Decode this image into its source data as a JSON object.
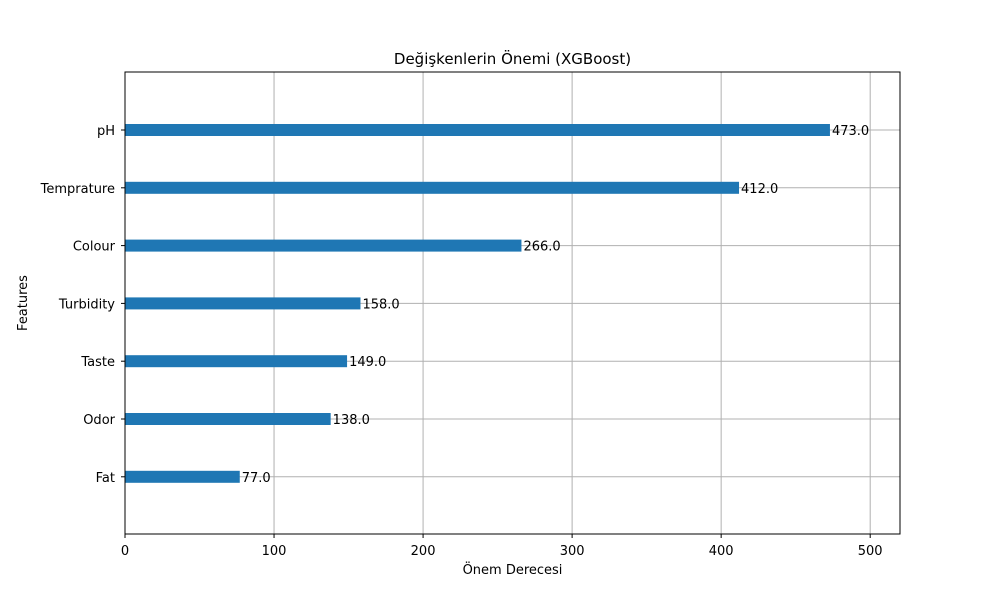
{
  "chart_data": {
    "type": "bar",
    "orientation": "horizontal",
    "title": "Değişkenlerin Önemi (XGBoost)",
    "xlabel": "Önem Derecesi",
    "ylabel": "Features",
    "categories": [
      "pH",
      "Temprature",
      "Colour",
      "Turbidity",
      "Taste",
      "Odor",
      "Fat "
    ],
    "values": [
      473,
      412,
      266,
      158,
      149,
      138,
      77
    ],
    "value_labels": [
      "473.0",
      "412.0",
      "266.0",
      "158.0",
      "149.0",
      "138.0",
      "77.0"
    ],
    "xlim": [
      0,
      520
    ],
    "xticks": [
      0,
      100,
      200,
      300,
      400,
      500
    ],
    "xtick_labels": [
      "0",
      "100",
      "200",
      "300",
      "400",
      "500"
    ],
    "grid": true,
    "bar_color": "#1f77b4",
    "grid_color": "#b0b0b0"
  }
}
